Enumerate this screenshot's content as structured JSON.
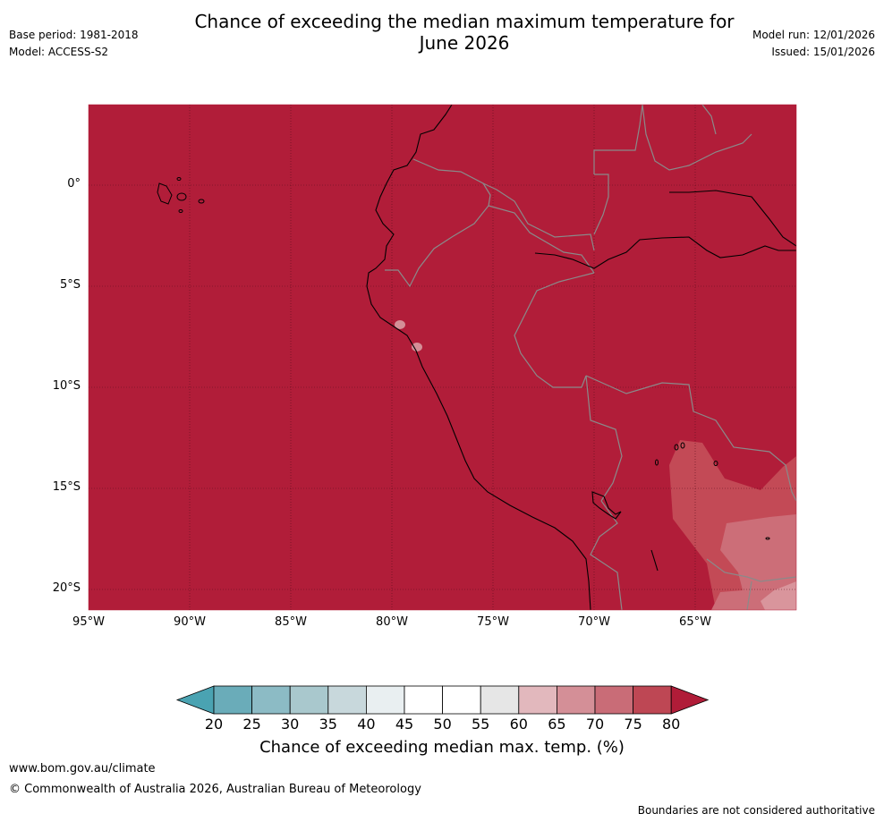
{
  "title_line1": "Chance of exceeding the median maximum temperature for",
  "title_line2": "June 2026",
  "meta_left": [
    "Base period: 1981-2018",
    "Model: ACCESS-S2"
  ],
  "meta_right": [
    "Model run: 12/01/2026",
    "Issued: 15/01/2026"
  ],
  "lat_labels": [
    "0°",
    "5°S",
    "10°S",
    "15°S",
    "20°S"
  ],
  "lon_labels": [
    "95°W",
    "90°W",
    "85°W",
    "80°W",
    "75°W",
    "70°W",
    "65°W"
  ],
  "colorbar": {
    "ticks": [
      "20",
      "25",
      "30",
      "35",
      "40",
      "45",
      "50",
      "55",
      "60",
      "65",
      "70",
      "75",
      "80"
    ],
    "colors": [
      "#6aacb9",
      "#8cbbc5",
      "#a9c8cd",
      "#c8d8dc",
      "#e9eff1",
      "#ffffff",
      "#ffffff",
      "#e6e6e6",
      "#e2b8bd",
      "#d48f97",
      "#c96c77",
      "#be4754"
    ],
    "under_color": "#4aa3b2",
    "over_color": "#b01c38",
    "label": "Chance of exceeding median max. temp. (%)"
  },
  "colors": {
    "dominant": "#b11d39",
    "band_75": "#c34a56",
    "band_70": "#cc6e78",
    "band_65": "#d9959c",
    "country_border": "#8a8a8a",
    "coastline": "#000000"
  },
  "footer": {
    "url": "www.bom.gov.au/climate",
    "copyright": "© Commonwealth of Australia 2026, Australian Bureau of Meteorology",
    "boundary_note": "Boundaries are not considered authoritative"
  }
}
